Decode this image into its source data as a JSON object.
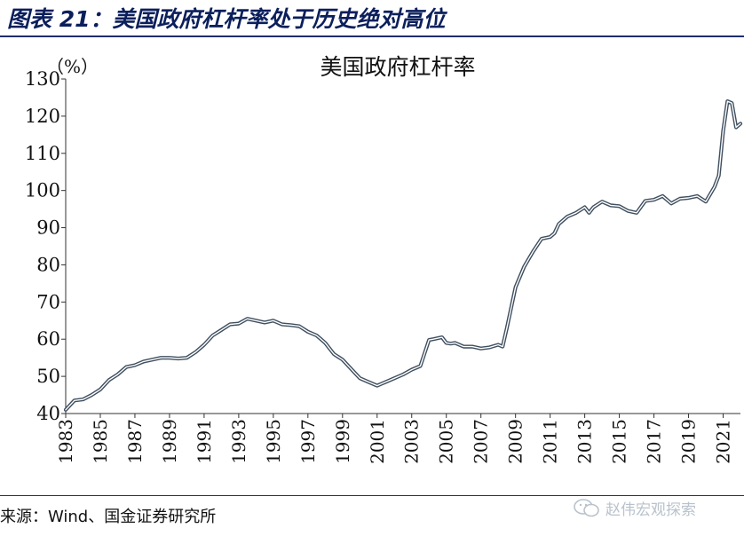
{
  "figure_title": "图表 21：美国政府杠杆率处于历史绝对高位",
  "source_text": "来源：Wind、国金证券研究所",
  "watermark_text": "赵伟宏观探索",
  "watermark_icon": "wechat-icon",
  "colors": {
    "title": "#0b1f5c",
    "line_outer": "#3f4f5f",
    "line_inner": "#ffffff",
    "rule": "#1d2e6e"
  },
  "chart_data": {
    "type": "line",
    "title": "美国政府杠杆率",
    "ylabel": "（%）",
    "xlabel": "",
    "ylim": [
      40,
      130
    ],
    "xlim": [
      1983,
      2022
    ],
    "y_ticks": [
      "40",
      "50",
      "60",
      "70",
      "80",
      "90",
      "100",
      "110",
      "120",
      "130"
    ],
    "x_ticks": [
      "1983",
      "1985",
      "1987",
      "1989",
      "1991",
      "1993",
      "1995",
      "1997",
      "1999",
      "2001",
      "2003",
      "2005",
      "2007",
      "2009",
      "2011",
      "2013",
      "2015",
      "2017",
      "2019",
      "2021"
    ],
    "grid": false,
    "legend": "none",
    "line_style": "double-line",
    "series": [
      {
        "x": [
          1983.0,
          1983.5,
          1984.0,
          1984.5,
          1985.0,
          1985.5,
          1986.0,
          1986.5,
          1987.0,
          1987.5,
          1988.0,
          1988.5,
          1989.0,
          1989.5,
          1990.0,
          1990.5,
          1991.0,
          1991.5,
          1992.0,
          1992.5,
          1993.0,
          1993.5,
          1994.0,
          1994.5,
          1995.0,
          1995.5,
          1996.0,
          1996.5,
          1997.0,
          1997.5,
          1998.0,
          1998.5,
          1999.0,
          1999.5,
          2000.0,
          2000.5,
          2001.0,
          2001.25,
          2001.5,
          2002.0,
          2002.5,
          2003.0,
          2003.5,
          2004.0,
          2004.25,
          2004.75,
          2005.0,
          2005.25,
          2005.5,
          2006.0,
          2006.5,
          2007.0,
          2007.5,
          2008.0,
          2008.25,
          2008.5,
          2008.75,
          2009.0,
          2009.5,
          2010.0,
          2010.5,
          2011.0,
          2011.25,
          2011.5,
          2012.0,
          2012.5,
          2013.0,
          2013.25,
          2013.5,
          2014.0,
          2014.5,
          2015.0,
          2015.5,
          2016.0,
          2016.5,
          2017.0,
          2017.5,
          2018.0,
          2018.5,
          2019.0,
          2019.5,
          2020.0,
          2020.25,
          2020.5,
          2020.75,
          2021.0,
          2021.25,
          2021.5,
          2021.75,
          2022.0
        ],
        "y": [
          41,
          43.5,
          43.8,
          45,
          46.5,
          49,
          50.5,
          52.5,
          53,
          54,
          54.5,
          55,
          55,
          54.8,
          55,
          56.5,
          58.5,
          61,
          62.5,
          64,
          64.2,
          65.5,
          65,
          64.5,
          65,
          64,
          63.8,
          63.5,
          62,
          61,
          59,
          56,
          54.5,
          52,
          49.5,
          48.5,
          47.5,
          48,
          48.5,
          49.5,
          50.5,
          51.8,
          52.8,
          59.8,
          60,
          60.5,
          59,
          58.8,
          59,
          58,
          58,
          57.5,
          57.8,
          58.5,
          58,
          63,
          68.5,
          74,
          79.5,
          83.5,
          87,
          87.5,
          88.5,
          91,
          93,
          94,
          95.5,
          94,
          95.5,
          97,
          96,
          95.8,
          94.5,
          94,
          97.2,
          97.5,
          98.5,
          96.5,
          97.8,
          98,
          98.5,
          97,
          99,
          101,
          104,
          116,
          124,
          123.5,
          117,
          118
        ]
      }
    ]
  }
}
